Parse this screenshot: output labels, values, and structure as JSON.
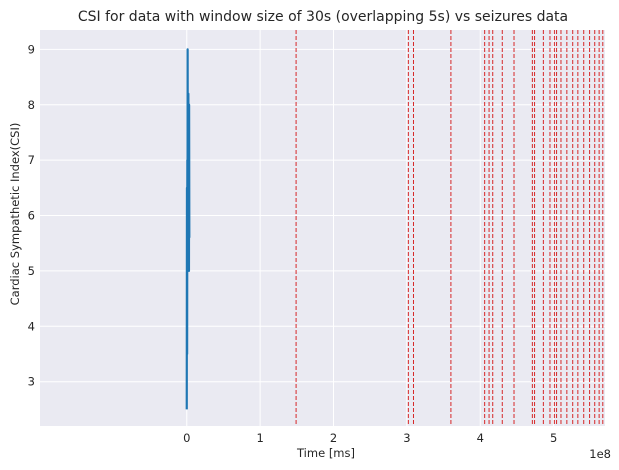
{
  "chart_data": {
    "type": "line",
    "title": "CSI for data with window size of 30s (overlapping 5s) vs seizures data",
    "xlabel": "Time [ms]",
    "ylabel": "Cardiac Sympathetic Index(CSI)",
    "x_offset_label": "1e8",
    "x_scale": 100000000,
    "xlim": [
      -2.0,
      5.7
    ],
    "ylim": [
      2.2,
      9.35
    ],
    "x_ticks": [
      0,
      1,
      2,
      3,
      4,
      5
    ],
    "x_tick_labels": [
      "0",
      "1",
      "2",
      "3",
      "4",
      "5"
    ],
    "y_ticks": [
      3,
      4,
      5,
      6,
      7,
      8,
      9
    ],
    "y_tick_labels": [
      "3",
      "4",
      "5",
      "6",
      "7",
      "8",
      "9"
    ],
    "grid": true,
    "series": [
      {
        "color": "#1f77b4",
        "x": [
          0.0,
          0.003,
          0.005,
          0.008,
          0.01,
          0.012,
          0.015,
          0.017,
          0.02,
          0.022,
          0.025,
          0.027,
          0.03,
          0.032,
          0.035
        ],
        "y": [
          2.5,
          6.5,
          3.5,
          7.0,
          5.0,
          9.0,
          6.0,
          7.5,
          5.5,
          8.2,
          6.2,
          7.8,
          5.0,
          8.0,
          5.6
        ]
      }
    ],
    "seizure_markers": {
      "color": "#d62728",
      "x": [
        1.49,
        3.02,
        3.09,
        3.6,
        4.06,
        4.12,
        4.17,
        4.3,
        4.46,
        4.71,
        4.74,
        4.86,
        4.95,
        5.01,
        5.04,
        5.1,
        5.18,
        5.26,
        5.33,
        5.41,
        5.49,
        5.56,
        5.62,
        5.67
      ]
    }
  }
}
